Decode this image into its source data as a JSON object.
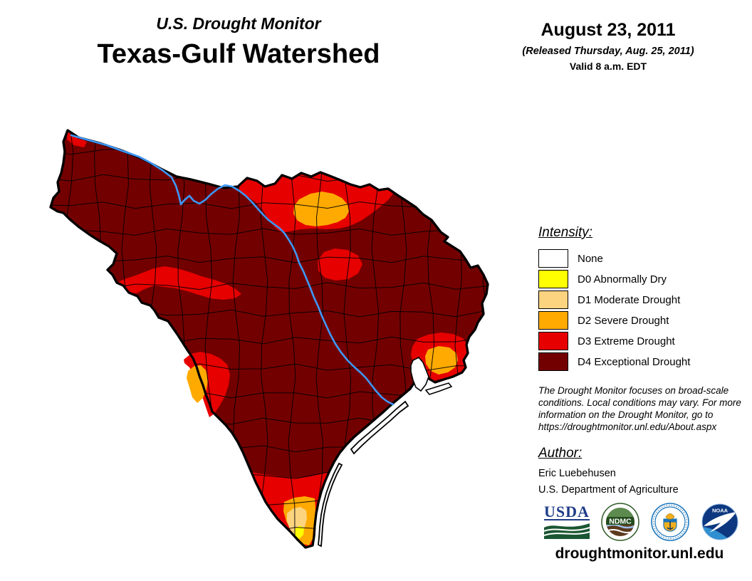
{
  "header": {
    "program": "U.S. Drought Monitor",
    "region": "Texas-Gulf Watershed",
    "date": "August 23, 2011",
    "released": "(Released Thursday, Aug. 25, 2011)",
    "valid": "Valid 8 a.m. EDT"
  },
  "legend": {
    "title": "Intensity:",
    "items": [
      {
        "label": "None",
        "color": "#FFFFFF"
      },
      {
        "label": "D0 Abnormally Dry",
        "color": "#FFFF00"
      },
      {
        "label": "D1 Moderate Drought",
        "color": "#FCD37F"
      },
      {
        "label": "D2 Severe Drought",
        "color": "#FFAA00"
      },
      {
        "label": "D3 Extreme Drought",
        "color": "#E60000"
      },
      {
        "label": "D4 Exceptional Drought",
        "color": "#730000"
      }
    ]
  },
  "colors": {
    "none": "#FFFFFF",
    "d0": "#FFFF00",
    "d1": "#FCD37F",
    "d2": "#FFAA00",
    "d3": "#E60000",
    "d4": "#730000",
    "river": "#3E97F8",
    "boundary": "#000000"
  },
  "disclaimer": {
    "lines": [
      "The Drought Monitor focuses on broad-scale",
      "conditions. Local conditions may vary. For more",
      "information on the Drought Monitor, go to",
      "https://droughtmonitor.unl.edu/About.aspx"
    ]
  },
  "author": {
    "title": "Author:",
    "name": "Eric Luebehusen",
    "org": "U.S. Department of Agriculture"
  },
  "logos": {
    "usda_text": "USDA",
    "ndmc_text": "NDMC",
    "noaa_text": "NOAA"
  },
  "site": {
    "url": "droughtmonitor.unl.edu"
  }
}
